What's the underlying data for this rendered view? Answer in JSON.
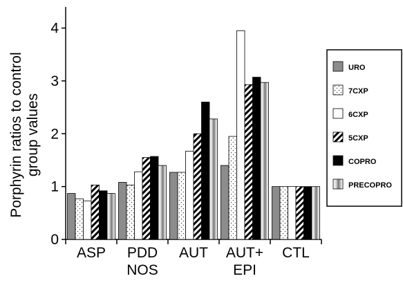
{
  "chart_data": {
    "type": "bar",
    "title": "",
    "xlabel": "",
    "ylabel": [
      "Porphyrin ratios to control",
      "group values"
    ],
    "ylim": [
      0,
      4.4
    ],
    "yticks": [
      "0",
      "1",
      "2",
      "3",
      "4"
    ],
    "categories": [
      [
        "ASP"
      ],
      [
        "PDD",
        "NOS"
      ],
      [
        "AUT"
      ],
      [
        "AUT+",
        "EPI"
      ],
      [
        "CTL"
      ]
    ],
    "series": [
      {
        "name": "URO",
        "pattern": "gray",
        "values": [
          0.87,
          1.08,
          1.27,
          1.4,
          1.0
        ]
      },
      {
        "name": "7CXP",
        "pattern": "dots",
        "values": [
          0.77,
          1.03,
          1.27,
          1.95,
          1.0
        ]
      },
      {
        "name": "6CXP",
        "pattern": "white",
        "values": [
          0.73,
          1.28,
          1.67,
          3.95,
          1.0
        ]
      },
      {
        "name": "5CXP",
        "pattern": "hatch",
        "values": [
          1.03,
          1.55,
          2.0,
          2.93,
          1.0
        ]
      },
      {
        "name": "COPRO",
        "pattern": "black",
        "values": [
          0.92,
          1.57,
          2.6,
          3.07,
          1.0
        ]
      },
      {
        "name": "PRECOPRO",
        "pattern": "gradient",
        "values": [
          0.87,
          1.4,
          2.28,
          2.97,
          1.0
        ]
      }
    ],
    "legend_position": "right",
    "grid": false
  }
}
